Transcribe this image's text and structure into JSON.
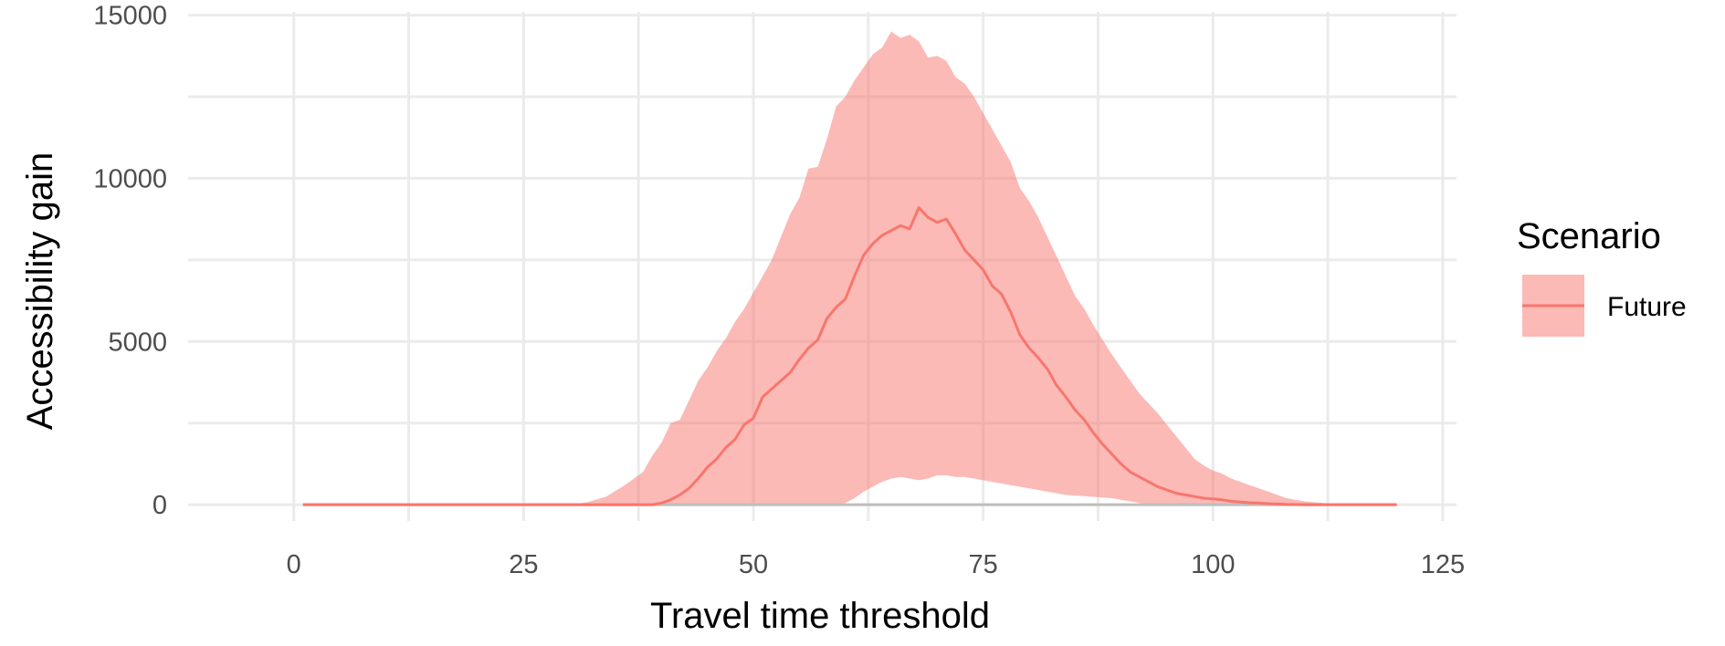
{
  "chart_data": {
    "type": "area",
    "title": "",
    "xlabel": "Travel time threshold",
    "ylabel": "Accessibility gain",
    "xlim": [
      -11.5,
      126.5
    ],
    "ylim": [
      -500,
      15100
    ],
    "x_ticks": [
      0,
      25,
      50,
      75,
      100,
      125
    ],
    "x_tick_labels": [
      "0",
      "25",
      "50",
      "75",
      "100",
      "125"
    ],
    "y_ticks": [
      0,
      5000,
      10000,
      15000
    ],
    "y_tick_labels": [
      "0",
      "5000",
      "10000",
      "15000"
    ],
    "grid": true,
    "legend": {
      "title": "Scenario",
      "position": "right"
    },
    "colors": {
      "line": "#f8766d",
      "ribbon": "#f8766d",
      "ribbon_opacity": 0.5,
      "zero_line": "#bebebe"
    },
    "series": [
      {
        "name": "Future",
        "x": [
          1,
          30,
          32,
          34,
          36,
          38,
          39,
          40,
          41,
          42,
          43,
          44,
          45,
          46,
          47,
          48,
          49,
          50,
          51,
          52,
          53,
          54,
          55,
          56,
          57,
          58,
          59,
          60,
          61,
          62,
          63,
          64,
          65,
          66,
          67,
          68,
          69,
          70,
          71,
          72,
          73,
          74,
          75,
          76,
          77,
          78,
          79,
          80,
          81,
          82,
          83,
          84,
          85,
          86,
          87,
          88,
          89,
          90,
          91,
          92,
          93,
          94,
          95,
          96,
          97,
          98,
          99,
          100,
          101,
          102,
          103,
          104,
          105,
          106,
          107,
          108,
          110,
          112,
          114,
          116,
          118,
          120
        ],
        "mean": [
          0,
          0,
          0,
          0,
          0,
          0,
          0,
          50,
          150,
          300,
          500,
          800,
          1150,
          1400,
          1750,
          2000,
          2450,
          2650,
          3300,
          3550,
          3800,
          4050,
          4450,
          4800,
          5050,
          5700,
          6050,
          6300,
          7000,
          7650,
          8000,
          8250,
          8400,
          8550,
          8450,
          9100,
          8800,
          8650,
          8750,
          8300,
          7800,
          7500,
          7200,
          6700,
          6450,
          5900,
          5200,
          4800,
          4500,
          4150,
          3650,
          3300,
          2900,
          2600,
          2200,
          1850,
          1550,
          1250,
          1000,
          850,
          700,
          550,
          450,
          350,
          300,
          250,
          200,
          180,
          150,
          100,
          80,
          60,
          50,
          30,
          20,
          10,
          0,
          0,
          0,
          0,
          0,
          0
        ],
        "upper": [
          0,
          0,
          80,
          250,
          600,
          1000,
          1500,
          1900,
          2500,
          2600,
          3200,
          3800,
          4200,
          4700,
          5100,
          5600,
          6000,
          6500,
          7000,
          7500,
          8200,
          8900,
          9400,
          10300,
          10350,
          11200,
          12200,
          12500,
          13000,
          13400,
          13800,
          14000,
          14500,
          14300,
          14400,
          14200,
          13700,
          13750,
          13600,
          13100,
          12900,
          12500,
          12000,
          11500,
          11000,
          10500,
          9700,
          9300,
          8800,
          8200,
          7600,
          7000,
          6400,
          6000,
          5500,
          5050,
          4600,
          4200,
          3800,
          3400,
          3100,
          2800,
          2450,
          2100,
          1750,
          1400,
          1200,
          1050,
          950,
          800,
          700,
          600,
          500,
          400,
          300,
          200,
          100,
          50,
          10,
          0,
          0,
          0
        ],
        "lower": [
          0,
          0,
          0,
          0,
          0,
          0,
          0,
          0,
          0,
          0,
          0,
          0,
          0,
          0,
          0,
          0,
          0,
          0,
          0,
          0,
          0,
          0,
          0,
          0,
          0,
          0,
          0,
          50,
          200,
          400,
          550,
          700,
          800,
          850,
          800,
          750,
          800,
          900,
          900,
          850,
          850,
          800,
          750,
          700,
          650,
          600,
          550,
          500,
          450,
          400,
          350,
          300,
          280,
          260,
          240,
          220,
          200,
          150,
          100,
          50,
          20,
          0,
          0,
          0,
          0,
          0,
          0,
          0,
          0,
          0,
          0,
          0,
          0,
          0,
          0,
          0,
          0,
          0,
          0,
          0,
          0,
          0
        ]
      }
    ]
  }
}
